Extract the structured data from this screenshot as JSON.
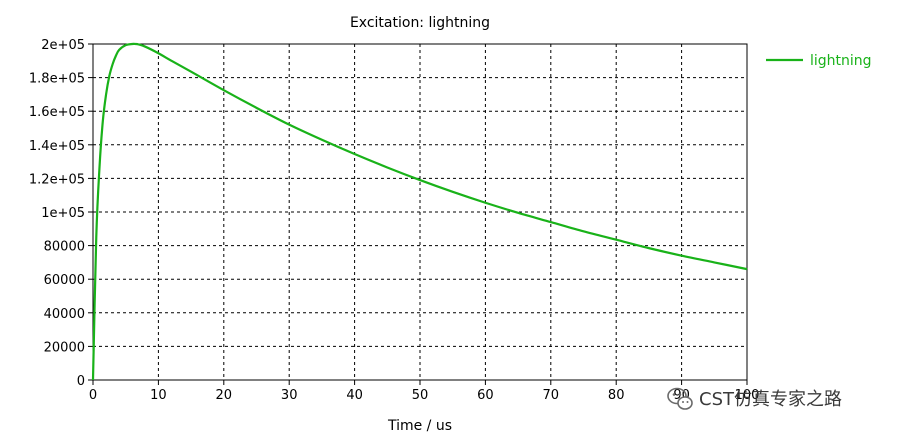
{
  "chart_data": {
    "type": "line",
    "title": "Excitation: lightning",
    "xlabel": "Time / us",
    "ylabel": "",
    "xlim": [
      0,
      100
    ],
    "ylim": [
      0,
      200000
    ],
    "x_ticks": [
      0,
      10,
      20,
      30,
      40,
      50,
      60,
      70,
      80,
      90,
      100
    ],
    "x_tick_labels": [
      "0",
      "10",
      "20",
      "30",
      "40",
      "50",
      "60",
      "70",
      "80",
      "90",
      "100"
    ],
    "y_ticks": [
      0,
      20000,
      40000,
      60000,
      80000,
      100000,
      120000,
      140000,
      160000,
      180000,
      200000
    ],
    "y_tick_labels": [
      "0",
      "20000",
      "40000",
      "60000",
      "80000",
      "1e+05",
      "1.2e+05",
      "1.4e+05",
      "1.6e+05",
      "1.8e+05",
      "2e+05"
    ],
    "grid": true,
    "legend_position": "top-right outside",
    "series": [
      {
        "name": "lightning",
        "color": "#19b219",
        "x": [
          0,
          0.5,
          1,
          1.5,
          2,
          2.5,
          3,
          3.5,
          4,
          5,
          6,
          6.5,
          7,
          8,
          10,
          12,
          15,
          20,
          25,
          30,
          35,
          40,
          45,
          50,
          55,
          60,
          65,
          70,
          75,
          80,
          85,
          90,
          95,
          100
        ],
        "y": [
          0,
          85000,
          127000,
          154000,
          170000,
          181000,
          188000,
          193000,
          196500,
          199300,
          200000,
          200000,
          199700,
          198400,
          194500,
          190000,
          183500,
          172500,
          162000,
          152000,
          143000,
          134500,
          126500,
          119000,
          112000,
          105500,
          99500,
          94000,
          88500,
          83500,
          78500,
          74000,
          70000,
          66000
        ]
      }
    ]
  },
  "watermark": {
    "text": "CST仿真专家之路",
    "icon": "wechat-icon"
  }
}
